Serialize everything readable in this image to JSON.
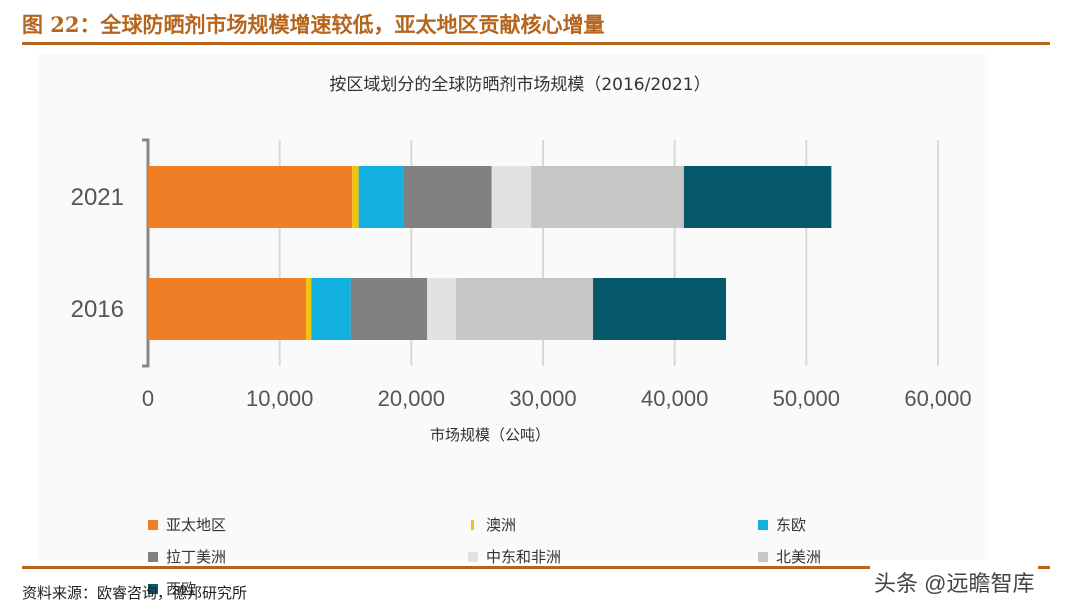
{
  "header": {
    "title": "图 22：全球防晒剂市场规模增速较低，亚太地区贡献核心增量"
  },
  "footer": {
    "source": "资料来源：欧睿咨询，德邦研究所",
    "watermark": "头条 @远瞻智库"
  },
  "chart_data": {
    "type": "bar",
    "orientation": "horizontal",
    "stacked": true,
    "title": "按区域划分的全球防晒剂市场规模（2016/2021）",
    "xlabel": "市场规模（公吨）",
    "ylabel": "",
    "xlim": [
      0,
      60000
    ],
    "xticks": [
      "0",
      "10,000",
      "20,000",
      "30,000",
      "40,000",
      "50,000",
      "60,000"
    ],
    "categories": [
      "2021",
      "2016"
    ],
    "grid": true,
    "legend_position": "bottom",
    "series": [
      {
        "name": "亚太地区",
        "color": "#ef7f27",
        "values": [
          15500,
          12000
        ]
      },
      {
        "name": "澳洲",
        "color": "#f3c40f",
        "values": [
          500,
          400
        ]
      },
      {
        "name": "东欧",
        "color": "#12b1e0",
        "values": [
          3400,
          3000
        ]
      },
      {
        "name": "拉丁美洲",
        "color": "#808080",
        "values": [
          6700,
          5800
        ]
      },
      {
        "name": "中东和非洲",
        "color": "#e2e2e2",
        "values": [
          3000,
          2200
        ]
      },
      {
        "name": "北美洲",
        "color": "#c6c6c6",
        "values": [
          11600,
          10400
        ]
      },
      {
        "name": "西欧",
        "color": "#06596b",
        "values": [
          11200,
          10100
        ]
      }
    ]
  }
}
